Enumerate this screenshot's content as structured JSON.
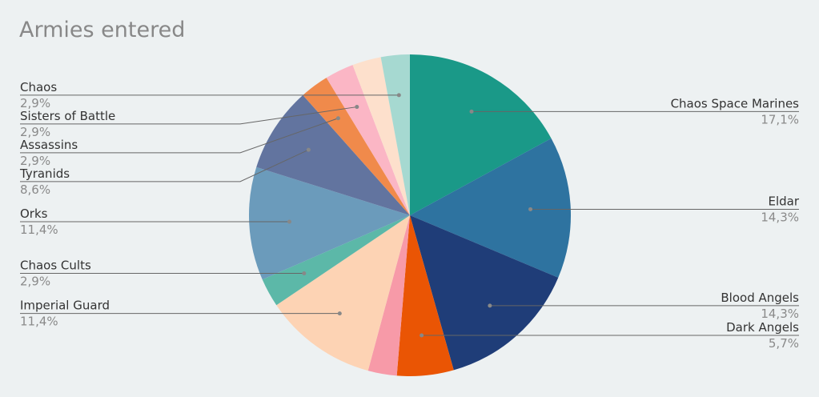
{
  "chart_data": {
    "type": "pie",
    "title": "Armies entered",
    "categories": [
      "Chaos Space Marines",
      "Eldar",
      "Blood Angels",
      "Dark Angels",
      null,
      "Imperial Guard",
      "Chaos Cults",
      "Orks",
      "Tyranids",
      "Assassins",
      "Sisters of Battle",
      null,
      "Chaos"
    ],
    "values": [
      17.1,
      14.3,
      14.3,
      5.7,
      2.9,
      11.4,
      2.9,
      11.4,
      8.6,
      2.9,
      2.9,
      2.9,
      2.9
    ],
    "value_labels": [
      "17,1%",
      "14,3%",
      "14,3%",
      "5,7%",
      null,
      "11,4%",
      "2,9%",
      "11,4%",
      "8,6%",
      "2,9%",
      "2,9%",
      null,
      "2,9%"
    ],
    "colors": [
      "#1a9988",
      "#2e73a0",
      "#1f3d78",
      "#ea5504",
      "#f79aa8",
      "#fdd3b4",
      "#5cb8a8",
      "#6b9bbb",
      "#62749f",
      "#f08a4b",
      "#fbb6c5",
      "#fde0cc",
      "#a6d9d1"
    ]
  }
}
